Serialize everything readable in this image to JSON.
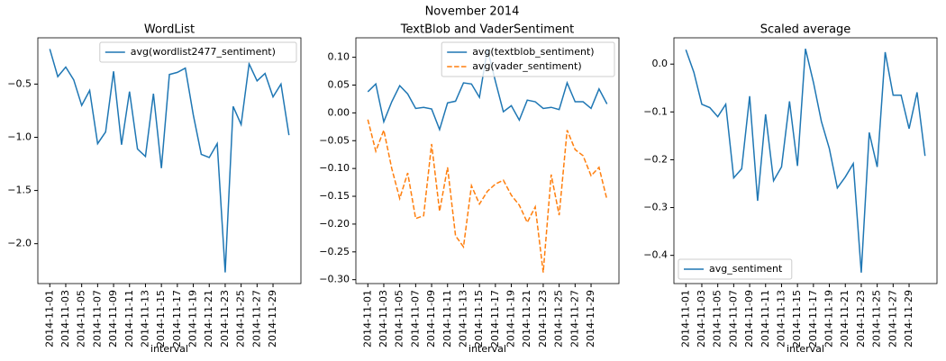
{
  "title": "November 2014",
  "chart_data": [
    {
      "type": "line",
      "title": "WordList",
      "xlabel": "interval",
      "x": [
        "2014-11-01",
        "2014-11-02",
        "2014-11-03",
        "2014-11-04",
        "2014-11-05",
        "2014-11-06",
        "2014-11-07",
        "2014-11-08",
        "2014-11-09",
        "2014-11-10",
        "2014-11-11",
        "2014-11-12",
        "2014-11-13",
        "2014-11-14",
        "2014-11-15",
        "2014-11-16",
        "2014-11-17",
        "2014-11-18",
        "2014-11-19",
        "2014-11-20",
        "2014-11-21",
        "2014-11-22",
        "2014-11-23",
        "2014-11-24",
        "2014-11-25",
        "2014-11-26",
        "2014-11-27",
        "2014-11-28",
        "2014-11-29",
        "2014-11-30",
        "2014-12-01"
      ],
      "xticks": [
        "2014-11-01",
        "2014-11-03",
        "2014-11-05",
        "2014-11-07",
        "2014-11-09",
        "2014-11-11",
        "2014-11-13",
        "2014-11-15",
        "2014-11-17",
        "2014-11-19",
        "2014-11-21",
        "2014-11-23",
        "2014-11-25",
        "2014-11-27",
        "2014-11-29"
      ],
      "series": [
        {
          "name": "avg(wordlist2477_sentiment)",
          "color": "#1f77b4",
          "dashed": false,
          "values": [
            -0.17,
            -0.43,
            -0.34,
            -0.46,
            -0.7,
            -0.56,
            -1.06,
            -0.95,
            -0.38,
            -1.07,
            -0.57,
            -1.11,
            -1.18,
            -0.59,
            -1.29,
            -0.41,
            -0.39,
            -0.35,
            -0.79,
            -1.16,
            -1.19,
            -1.06,
            -2.27,
            -0.71,
            -0.88,
            -0.31,
            -0.47,
            -0.4,
            -0.62,
            -0.5,
            -0.98
          ]
        }
      ],
      "ylim": [
        -2.375,
        -0.065
      ],
      "yticks": [
        {
          "value": -0.5,
          "label": "−0.5"
        },
        {
          "value": -1.0,
          "label": "−1.0"
        },
        {
          "value": -1.5,
          "label": "−1.5"
        },
        {
          "value": -2.0,
          "label": "−2.0"
        }
      ],
      "legend": "upper right"
    },
    {
      "type": "line",
      "title": "TextBlob and VaderSentiment",
      "xlabel": "interval",
      "x": [
        "2014-11-01",
        "2014-11-02",
        "2014-11-03",
        "2014-11-04",
        "2014-11-05",
        "2014-11-06",
        "2014-11-07",
        "2014-11-08",
        "2014-11-09",
        "2014-11-10",
        "2014-11-11",
        "2014-11-12",
        "2014-11-13",
        "2014-11-14",
        "2014-11-15",
        "2014-11-16",
        "2014-11-17",
        "2014-11-18",
        "2014-11-19",
        "2014-11-20",
        "2014-11-21",
        "2014-11-22",
        "2014-11-23",
        "2014-11-24",
        "2014-11-25",
        "2014-11-26",
        "2014-11-27",
        "2014-11-28",
        "2014-11-29",
        "2014-11-30",
        "2014-12-01"
      ],
      "xticks": [
        "2014-11-01",
        "2014-11-03",
        "2014-11-05",
        "2014-11-07",
        "2014-11-09",
        "2014-11-11",
        "2014-11-13",
        "2014-11-15",
        "2014-11-17",
        "2014-11-19",
        "2014-11-21",
        "2014-11-23",
        "2014-11-25",
        "2014-11-27",
        "2014-11-29"
      ],
      "series": [
        {
          "name": "avg(textblob_sentiment)",
          "color": "#1f77b4",
          "dashed": false,
          "values": [
            0.038,
            0.052,
            -0.016,
            0.02,
            0.049,
            0.034,
            0.008,
            0.01,
            0.007,
            -0.03,
            0.018,
            0.021,
            0.054,
            0.052,
            0.028,
            0.115,
            0.057,
            0.002,
            0.013,
            -0.013,
            0.023,
            0.02,
            0.008,
            0.01,
            0.006,
            0.054,
            0.02,
            0.02,
            0.008,
            0.043,
            0.016
          ]
        },
        {
          "name": "avg(vader_sentiment)",
          "color": "#ff7f0e",
          "dashed": true,
          "values": [
            -0.012,
            -0.069,
            -0.031,
            -0.1,
            -0.154,
            -0.108,
            -0.19,
            -0.185,
            -0.056,
            -0.177,
            -0.098,
            -0.221,
            -0.241,
            -0.131,
            -0.164,
            -0.141,
            -0.128,
            -0.121,
            -0.148,
            -0.166,
            -0.197,
            -0.169,
            -0.287,
            -0.111,
            -0.184,
            -0.031,
            -0.066,
            -0.077,
            -0.113,
            -0.098,
            -0.156
          ]
        }
      ],
      "ylim": [
        -0.307,
        0.135
      ],
      "yticks": [
        {
          "value": 0.1,
          "label": "0.10"
        },
        {
          "value": 0.05,
          "label": "0.05"
        },
        {
          "value": 0,
          "label": "0.00"
        },
        {
          "value": -0.05,
          "label": "−0.05"
        },
        {
          "value": -0.1,
          "label": "−0.10"
        },
        {
          "value": -0.15,
          "label": "−0.15"
        },
        {
          "value": -0.2,
          "label": "−0.20"
        },
        {
          "value": -0.25,
          "label": "−0.25"
        },
        {
          "value": -0.3,
          "label": "−0.30"
        }
      ],
      "legend": "upper right"
    },
    {
      "type": "line",
      "title": "Scaled average",
      "xlabel": "interval",
      "x": [
        "2014-11-01",
        "2014-11-02",
        "2014-11-03",
        "2014-11-04",
        "2014-11-05",
        "2014-11-06",
        "2014-11-07",
        "2014-11-08",
        "2014-11-09",
        "2014-11-10",
        "2014-11-11",
        "2014-11-12",
        "2014-11-13",
        "2014-11-14",
        "2014-11-15",
        "2014-11-16",
        "2014-11-17",
        "2014-11-18",
        "2014-11-19",
        "2014-11-20",
        "2014-11-21",
        "2014-11-22",
        "2014-11-23",
        "2014-11-24",
        "2014-11-25",
        "2014-11-26",
        "2014-11-27",
        "2014-11-28",
        "2014-11-29",
        "2014-11-30",
        "2014-12-01"
      ],
      "xticks": [
        "2014-11-01",
        "2014-11-03",
        "2014-11-05",
        "2014-11-07",
        "2014-11-09",
        "2014-11-11",
        "2014-11-13",
        "2014-11-15",
        "2014-11-17",
        "2014-11-19",
        "2014-11-21",
        "2014-11-23",
        "2014-11-25",
        "2014-11-27",
        "2014-11-29"
      ],
      "series": [
        {
          "name": "avg_sentiment",
          "color": "#1f77b4",
          "dashed": false,
          "values": [
            0.03,
            -0.017,
            -0.084,
            -0.091,
            -0.11,
            -0.084,
            -0.238,
            -0.219,
            -0.067,
            -0.286,
            -0.105,
            -0.244,
            -0.215,
            -0.078,
            -0.213,
            0.032,
            -0.038,
            -0.12,
            -0.177,
            -0.259,
            -0.236,
            -0.208,
            -0.436,
            -0.143,
            -0.215,
            0.025,
            -0.065,
            -0.065,
            -0.135,
            -0.059,
            -0.192
          ]
        }
      ],
      "ylim": [
        -0.459,
        0.055
      ],
      "yticks": [
        {
          "value": 0,
          "label": "0.0"
        },
        {
          "value": -0.1,
          "label": "−0.1"
        },
        {
          "value": -0.2,
          "label": "−0.2"
        },
        {
          "value": -0.3,
          "label": "−0.3"
        },
        {
          "value": -0.4,
          "label": "−0.4"
        }
      ],
      "legend": "lower left"
    }
  ]
}
